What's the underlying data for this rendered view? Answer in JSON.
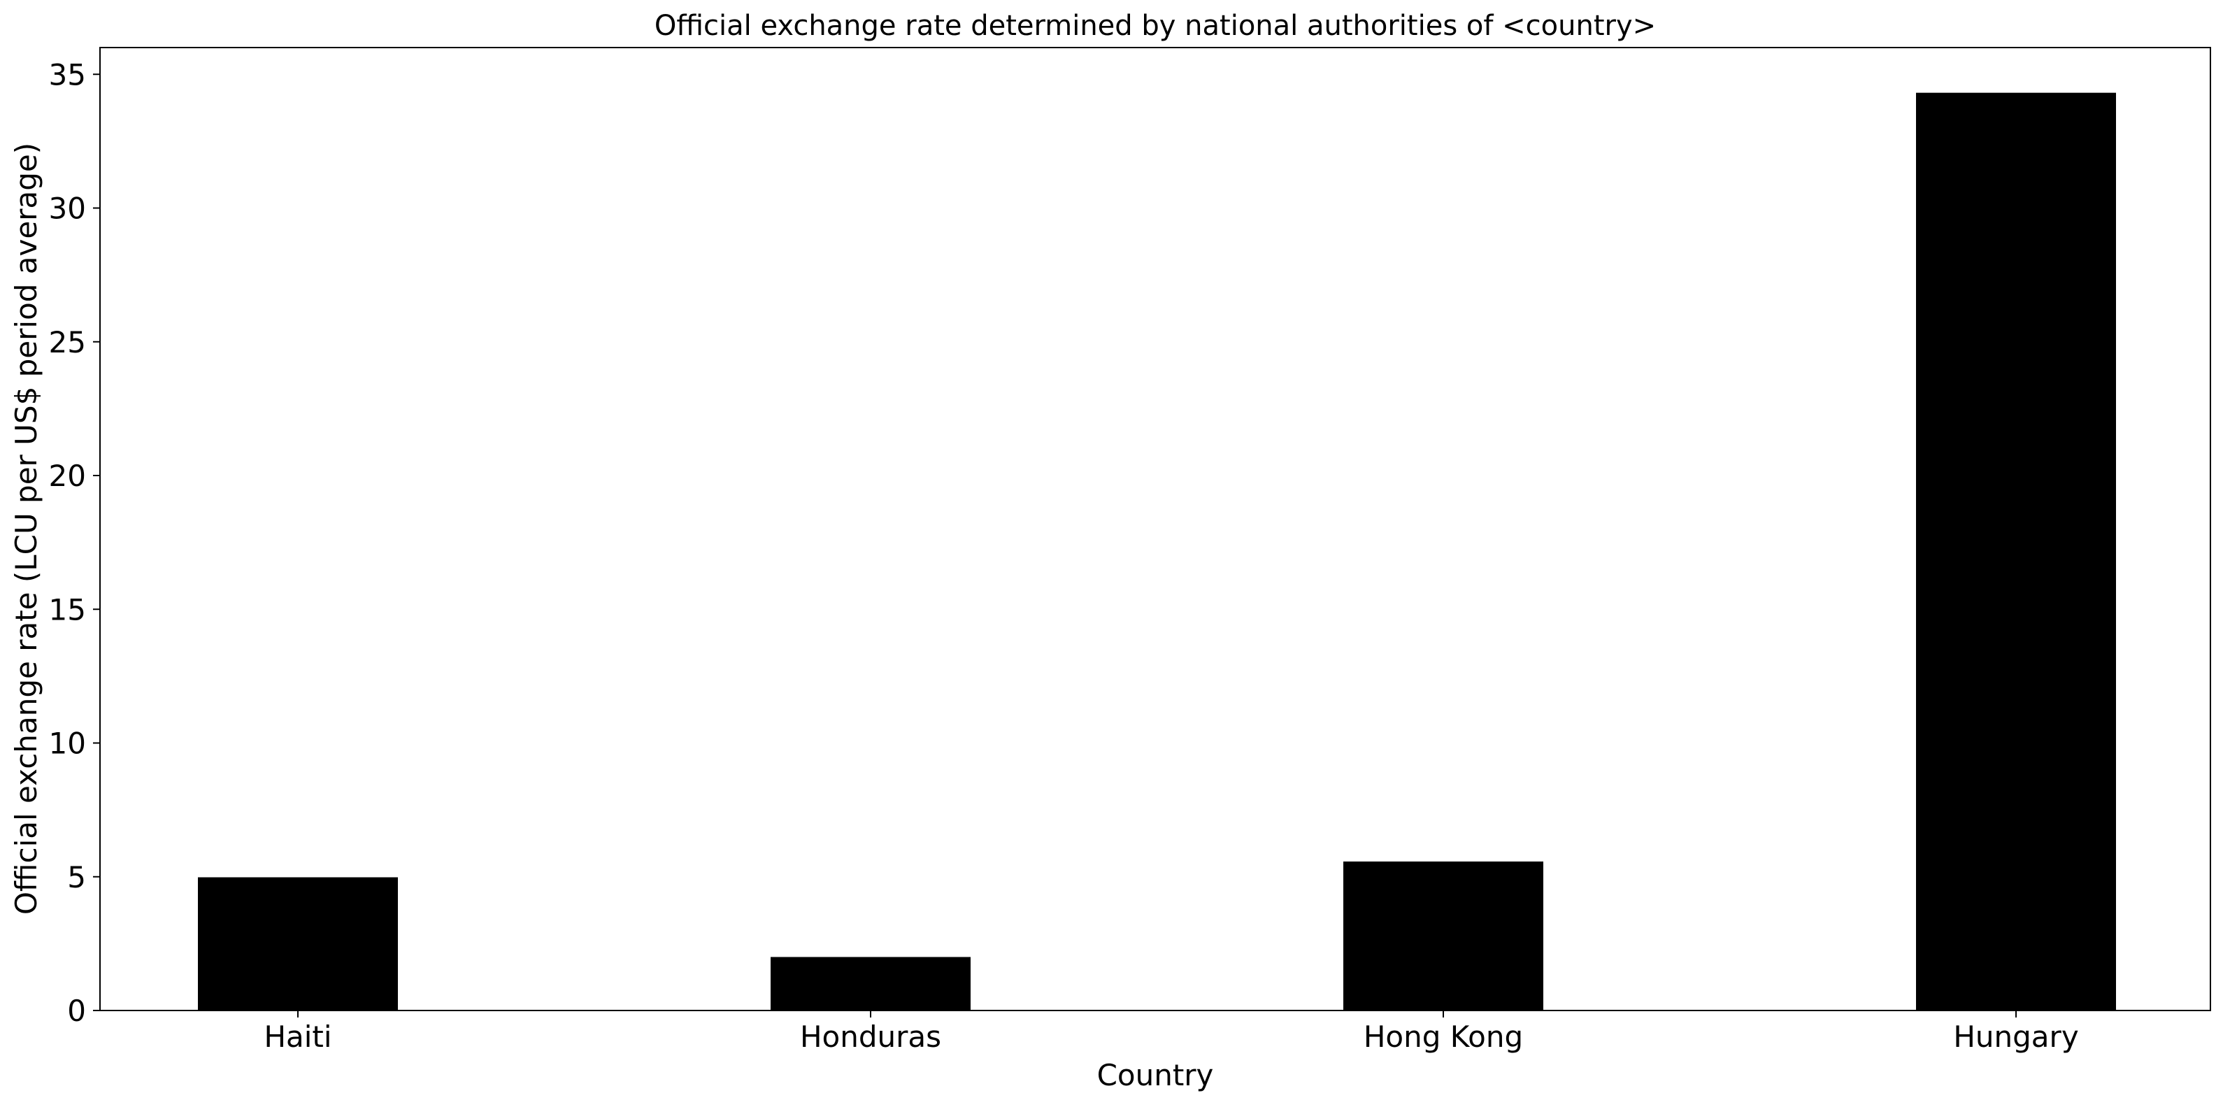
{
  "chart_data": {
    "type": "bar",
    "title": "Official exchange rate determined by national authorities of <country>",
    "xlabel": "Country",
    "ylabel": "Official exchange rate (LCU per US$ period average)",
    "categories": [
      "Haiti",
      "Honduras",
      "Hong Kong",
      "Hungary"
    ],
    "values": [
      4.98,
      2.0,
      5.57,
      34.31
    ],
    "ylim": [
      0,
      36
    ],
    "yticks": [
      0,
      5,
      10,
      15,
      20,
      25,
      30,
      35
    ],
    "grid": false,
    "legend": "none",
    "bar_color": "#000000"
  }
}
